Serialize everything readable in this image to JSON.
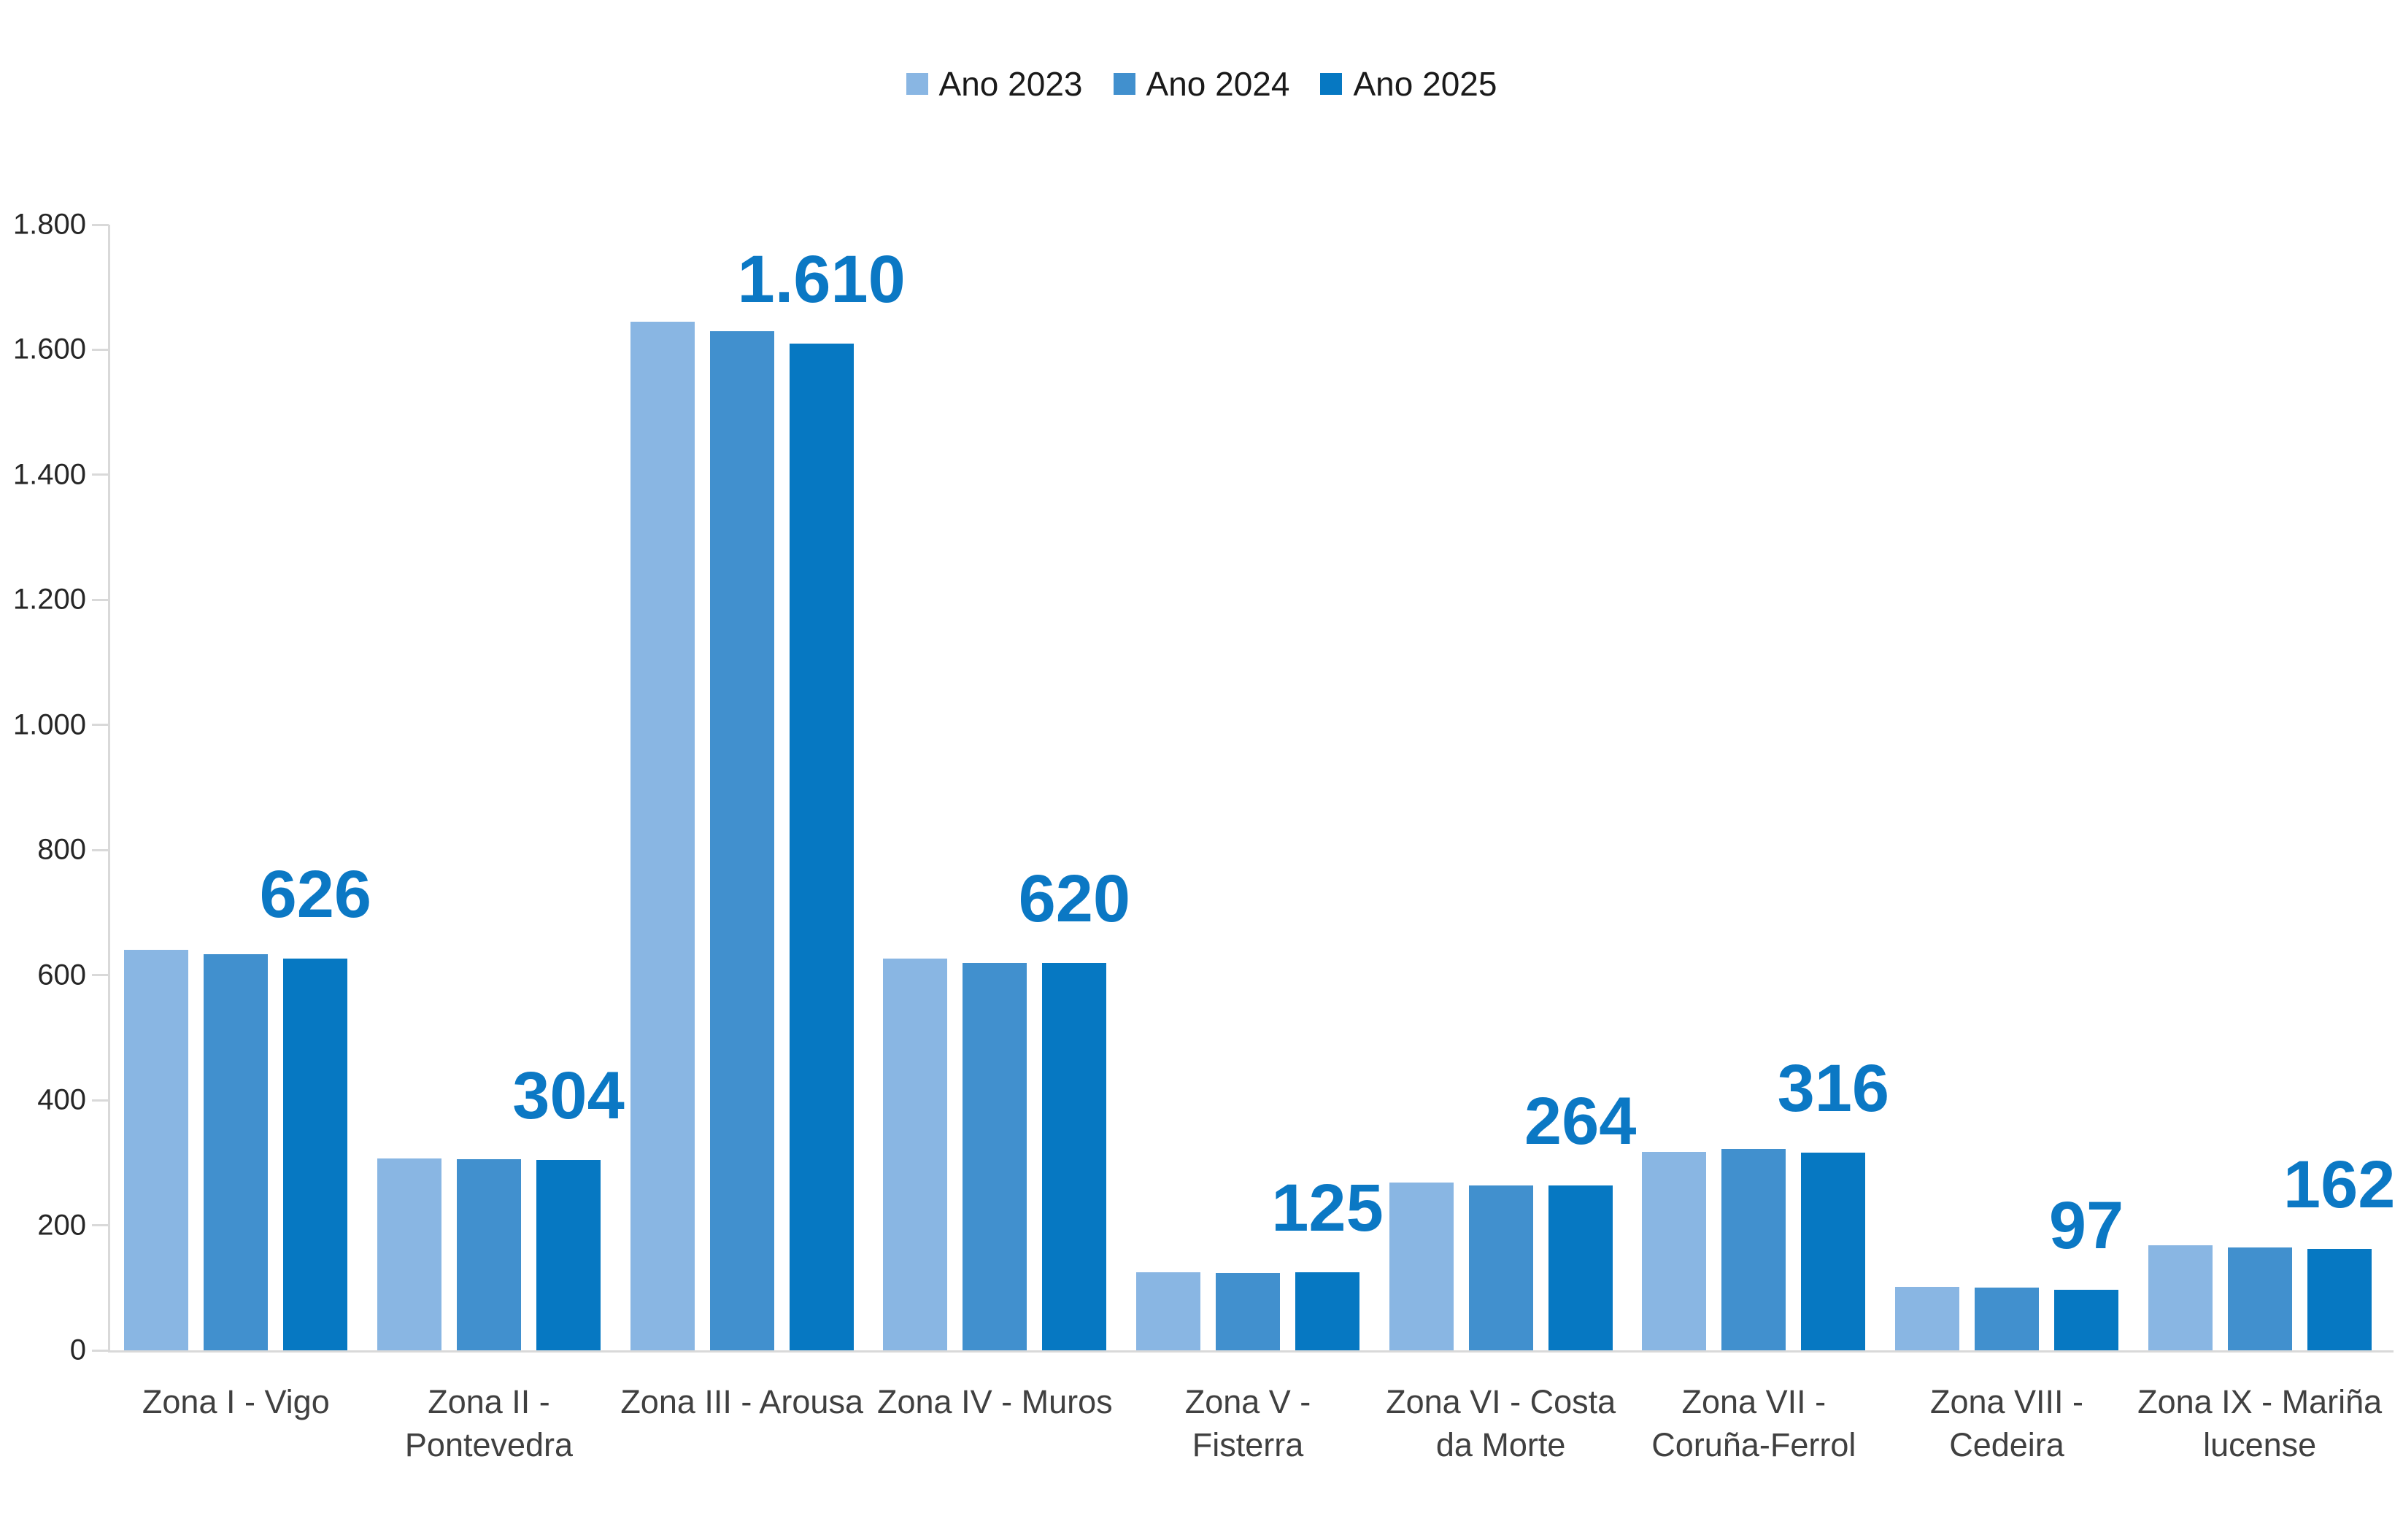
{
  "chart_style": {
    "background": "#FFFFFF",
    "axis_color": "#D9D9D9",
    "y_tick_label_color": "#262626",
    "category_label_color": "#404040",
    "legend_text_color": "#1A1A1A",
    "data_label_color": "#0B78C4"
  },
  "chart_data": {
    "type": "bar",
    "title": "",
    "legend_position": "top",
    "grid": false,
    "categories": [
      "Zona I - Vigo",
      "Zona II - Pontevedra",
      "Zona III - Arousa",
      "Zona IV - Muros",
      "Zona V - Fisterra",
      "Zona VI - Costa da Morte",
      "Zona VII - Coruña-Ferrol",
      "Zona VIII - Cedeira",
      "Zona IX - Mariña lucense"
    ],
    "category_label_lines": [
      [
        "Zona I - Vigo"
      ],
      [
        "Zona II -",
        "Pontevedra"
      ],
      [
        "Zona III - Arousa"
      ],
      [
        "Zona IV - Muros"
      ],
      [
        "Zona V -",
        "Fisterra"
      ],
      [
        "Zona VI - Costa",
        "da Morte"
      ],
      [
        "Zona VII -",
        "Coruña-Ferrol"
      ],
      [
        "Zona VIII -",
        "Cedeira"
      ],
      [
        "Zona IX - Mariña",
        "lucense"
      ]
    ],
    "series": [
      {
        "name": "Ano 2023",
        "color": "#89B6E3",
        "values": [
          640,
          307,
          1645,
          627,
          125,
          268,
          317,
          101,
          168
        ]
      },
      {
        "name": "Ano 2024",
        "color": "#4190CE",
        "values": [
          633,
          306,
          1630,
          620,
          124,
          264,
          322,
          100,
          165
        ]
      },
      {
        "name": "Ano 2025",
        "color": "#0678C2",
        "values": [
          626,
          304,
          1610,
          620,
          125,
          264,
          316,
          97,
          162
        ]
      }
    ],
    "data_labels": {
      "on_series": "Ano 2025",
      "values": [
        "626",
        "304",
        "1.610",
        "620",
        "125",
        "264",
        "316",
        "97",
        "162"
      ]
    },
    "y_axis": {
      "min": 0,
      "max": 1800,
      "tick_step": 200,
      "tick_labels": [
        "0",
        "200",
        "400",
        "600",
        "800",
        "1.000",
        "1.200",
        "1.400",
        "1.600",
        "1.800"
      ]
    }
  }
}
